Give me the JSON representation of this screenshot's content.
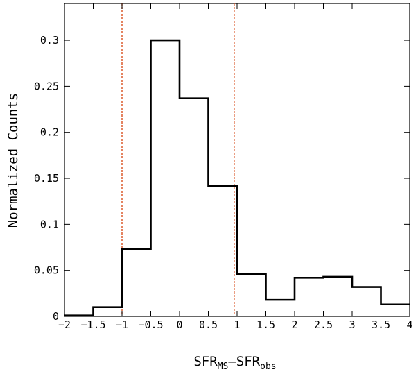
{
  "chart_data": {
    "type": "histogram",
    "title": "",
    "xlabel": {
      "main1": "SFR",
      "sub1": "MS",
      "main2": "–SFR",
      "sub2": "obs"
    },
    "ylabel": "Normalized Counts",
    "xlim": [
      -2,
      4
    ],
    "ylim": [
      0,
      0.34
    ],
    "grid": false,
    "bins": [
      {
        "x0": -2.0,
        "x1": -1.5,
        "value": 0.001
      },
      {
        "x0": -1.5,
        "x1": -1.0,
        "value": 0.01
      },
      {
        "x0": -1.0,
        "x1": -0.5,
        "value": 0.073
      },
      {
        "x0": -0.5,
        "x1": 0.0,
        "value": 0.3
      },
      {
        "x0": 0.0,
        "x1": 0.5,
        "value": 0.237
      },
      {
        "x0": 0.5,
        "x1": 1.0,
        "value": 0.142
      },
      {
        "x0": 1.0,
        "x1": 1.5,
        "value": 0.046
      },
      {
        "x0": 1.5,
        "x1": 2.0,
        "value": 0.018
      },
      {
        "x0": 2.0,
        "x1": 2.5,
        "value": 0.042
      },
      {
        "x0": 2.5,
        "x1": 3.0,
        "value": 0.043
      },
      {
        "x0": 3.0,
        "x1": 3.5,
        "value": 0.032
      },
      {
        "x0": 3.5,
        "x1": 4.0,
        "value": 0.013
      }
    ],
    "reference_lines": [
      {
        "axis": "x",
        "value": -1.0,
        "color": "#d9501e",
        "style": "dashed"
      },
      {
        "axis": "x",
        "value": 0.95,
        "color": "#d9501e",
        "style": "dashed"
      }
    ],
    "xticks": [
      -2,
      -1.5,
      -1,
      -0.5,
      0,
      0.5,
      1,
      1.5,
      2,
      2.5,
      3,
      3.5,
      4
    ],
    "xtick_labels": [
      "−2",
      "−1.5",
      "−1",
      "−0.5",
      "0",
      "0.5",
      "1",
      "1.5",
      "2",
      "2.5",
      "3",
      "3.5",
      "4"
    ],
    "yticks": [
      0,
      0.05,
      0.1,
      0.15,
      0.2,
      0.25,
      0.3
    ],
    "ytick_labels": [
      "0",
      "0.05",
      "0.1",
      "0.15",
      "0.2",
      "0.25",
      "0.3"
    ]
  }
}
